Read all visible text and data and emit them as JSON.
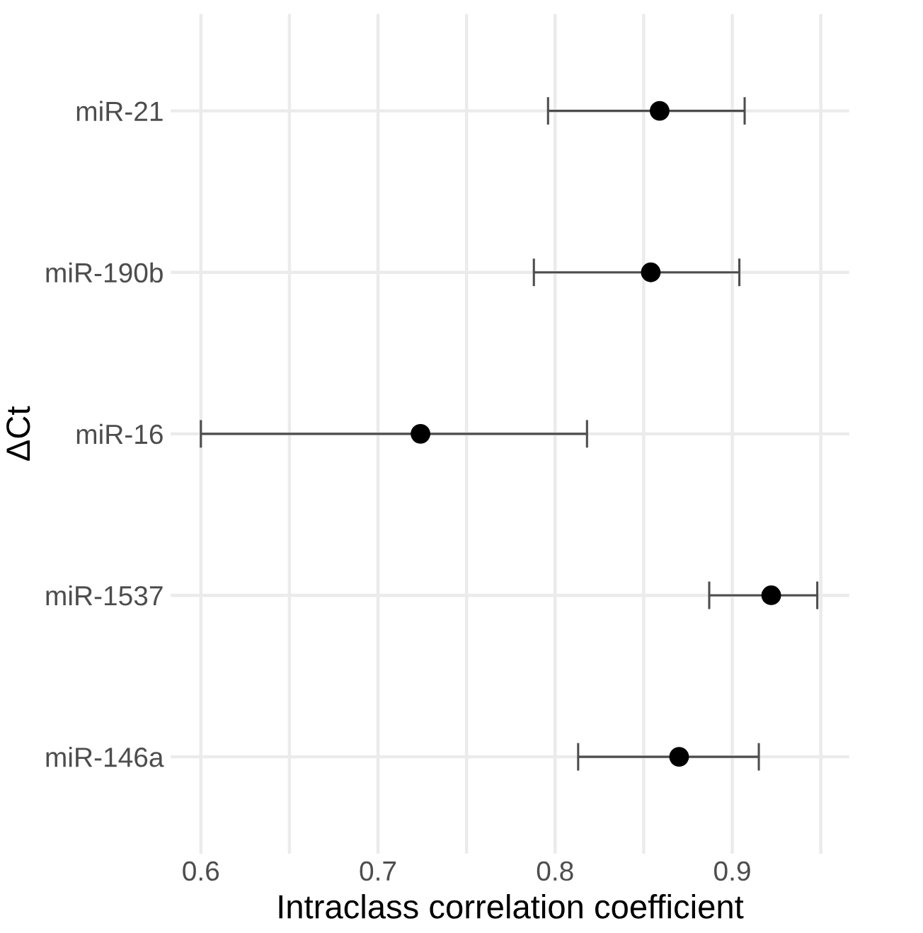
{
  "chart_data": {
    "type": "scatter",
    "orientation": "horizontal",
    "xlabel": "Intraclass correlation coefficient",
    "ylabel": "ΔCt",
    "categories": [
      "miR-21",
      "miR-190b",
      "miR-16",
      "miR-1537",
      "miR-146a"
    ],
    "values": [
      0.859,
      0.854,
      0.724,
      0.922,
      0.87
    ],
    "errors": [
      [
        0.796,
        0.907
      ],
      [
        0.788,
        0.904
      ],
      [
        0.6,
        0.818
      ],
      [
        0.887,
        0.948
      ],
      [
        0.813,
        0.915
      ]
    ],
    "colors": [
      "#000000",
      "#000000",
      "#000000",
      "#000000",
      "#000000"
    ],
    "xlim": [
      0.583,
      0.966
    ],
    "xticks": [
      0.6,
      {
        "value": 0.65,
        "label": null
      },
      0.7,
      {
        "value": 0.75,
        "label": null
      },
      0.8,
      {
        "value": 0.85,
        "label": null
      },
      0.9,
      {
        "value": 0.95,
        "label": null
      }
    ],
    "grid": true,
    "marker": "circle"
  }
}
